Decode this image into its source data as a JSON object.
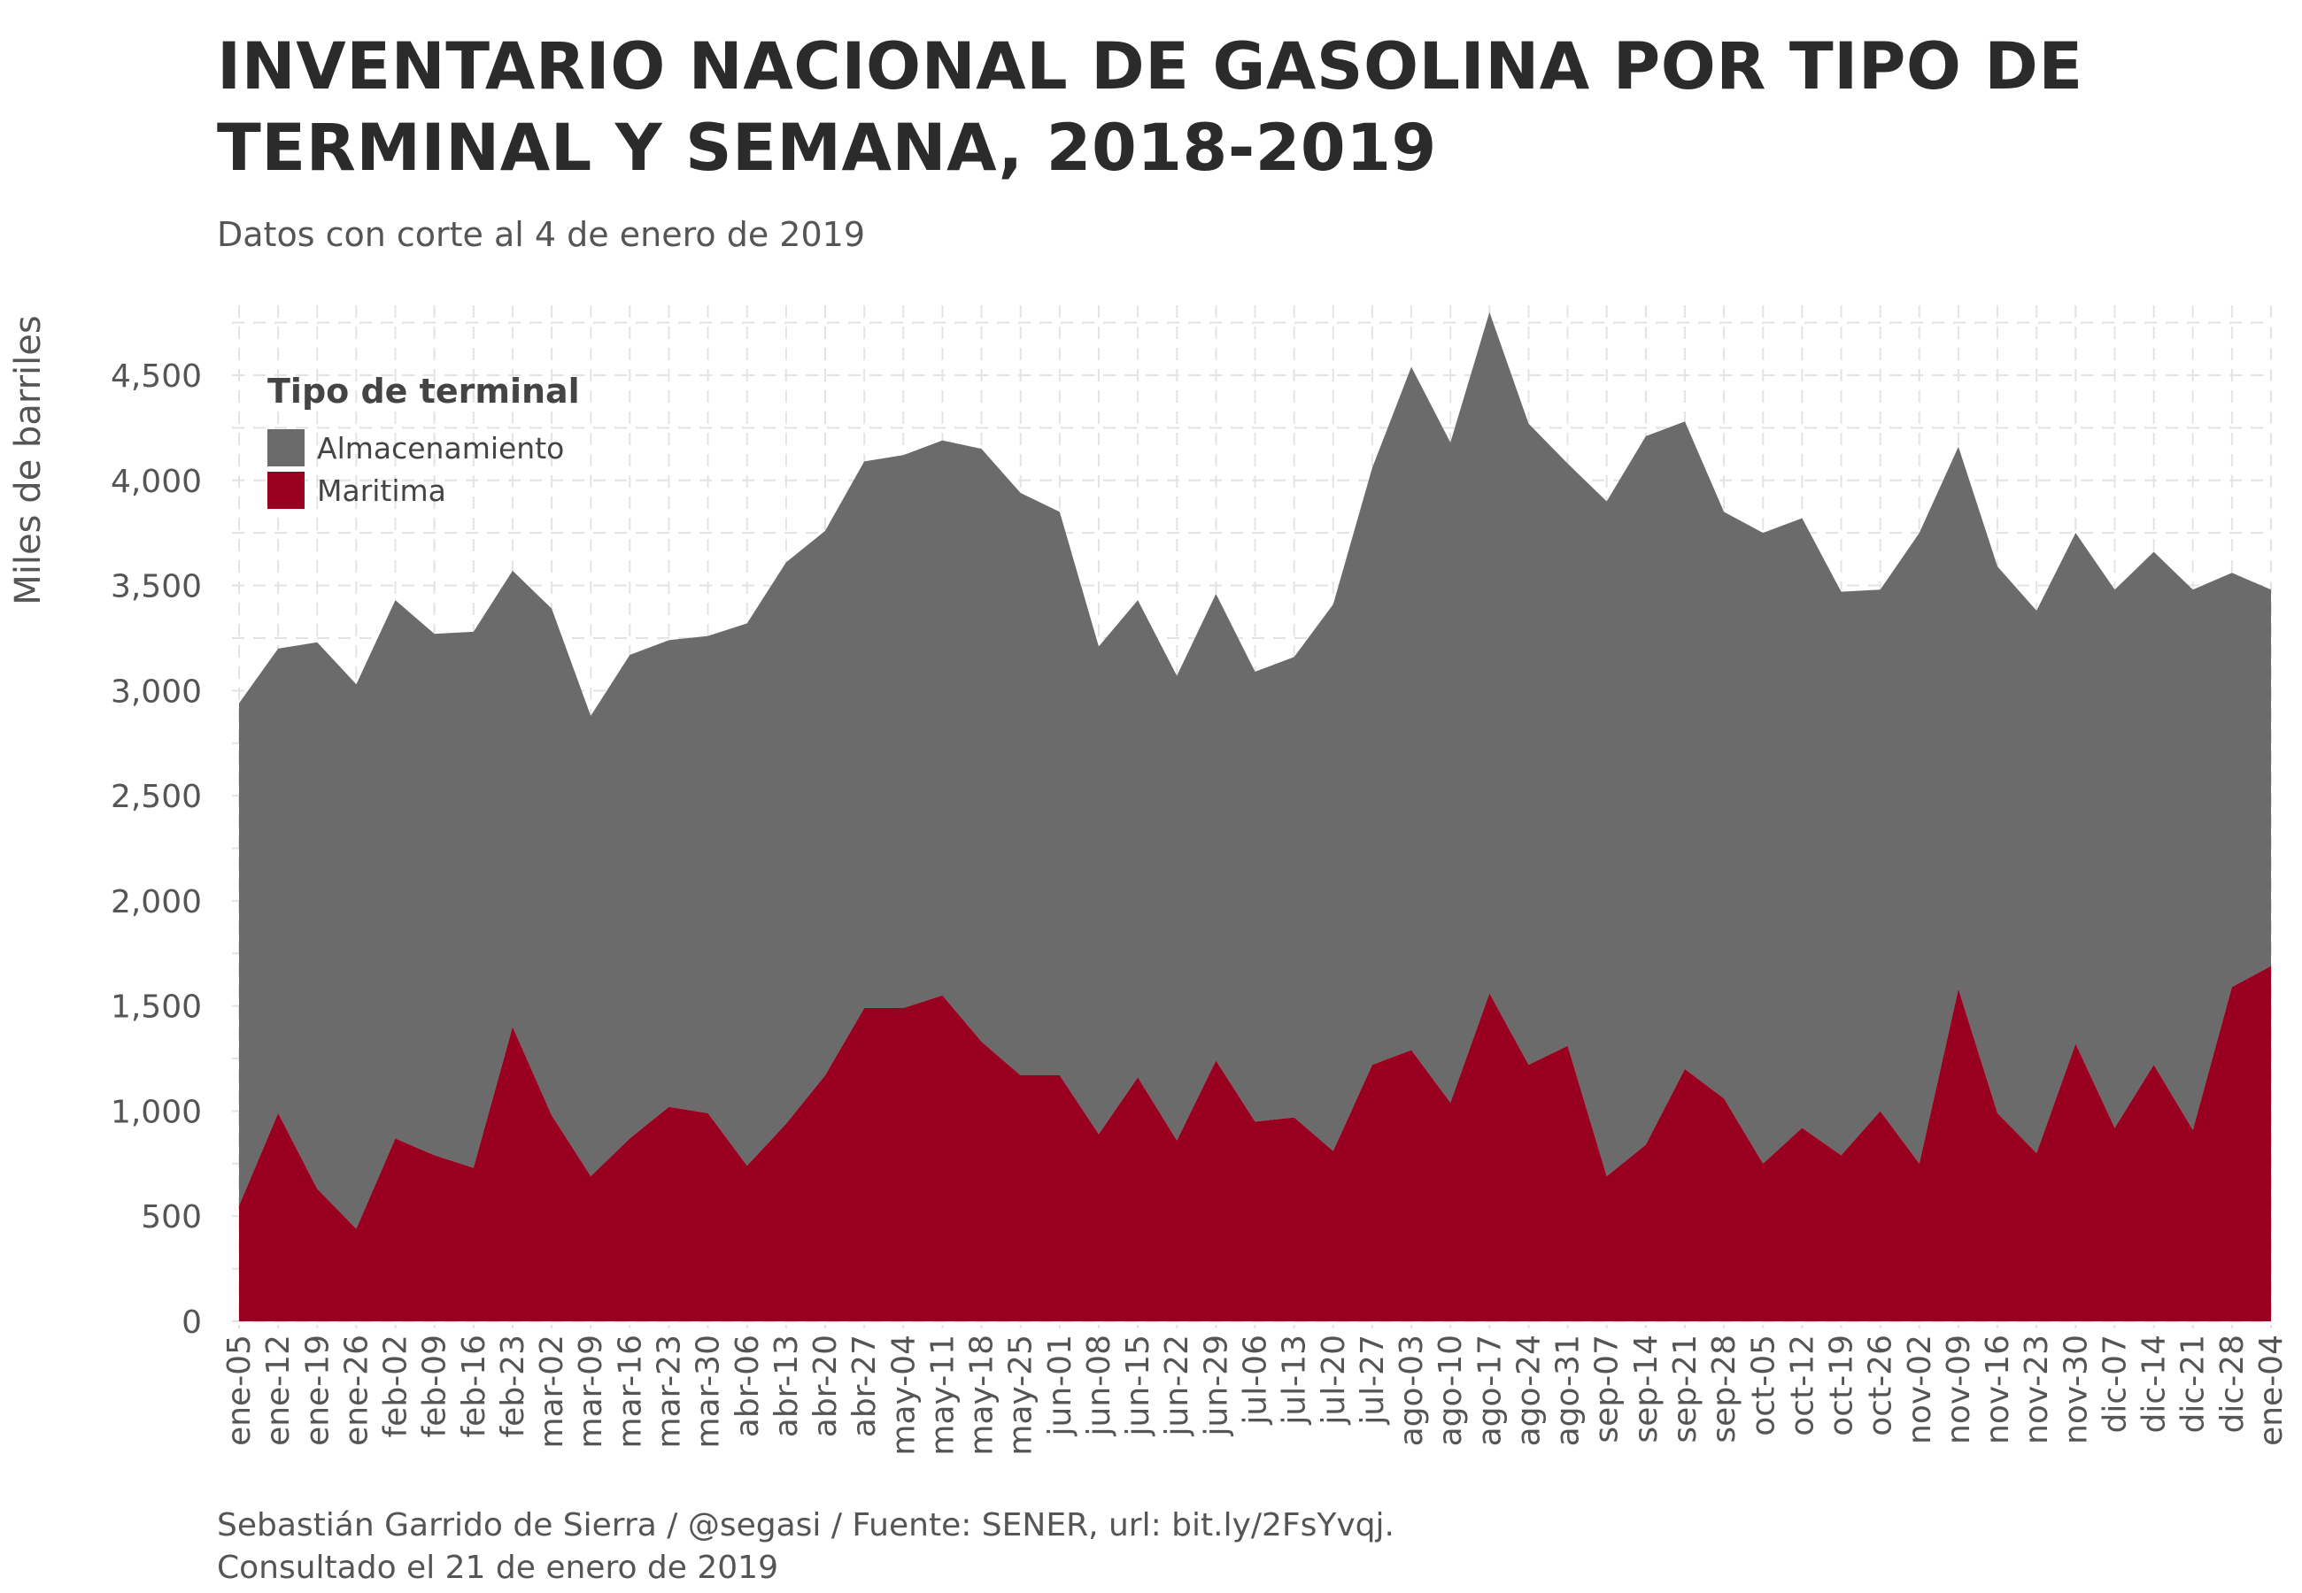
{
  "title": "INVENTARIO NACIONAL DE GASOLINA POR TIPO DE TERMINAL Y SEMANA, 2018-2019",
  "subtitle": "Datos con corte al 4 de enero de 2019",
  "caption_line1": "Sebastián Garrido de Sierra / @segasi / Fuente: SENER, url: bit.ly/2FsYvqj.",
  "caption_line2": "Consultado el 21 de enero de 2019",
  "colors": {
    "almacenamiento": "#6b6b6b",
    "maritima": "#990020"
  },
  "chart_data": {
    "type": "area",
    "stacked": true,
    "title": "INVENTARIO NACIONAL DE GASOLINA POR TIPO DE TERMINAL Y SEMANA, 2018-2019",
    "xlabel": "",
    "ylabel": "Miles de barriles",
    "ylim": [
      0,
      4800
    ],
    "yticks": [
      0,
      500,
      1000,
      1500,
      2000,
      2500,
      3000,
      3500,
      4000,
      4500
    ],
    "ytick_labels": [
      "0",
      "500",
      "1,000",
      "1,500",
      "2,000",
      "2,500",
      "3,000",
      "3,500",
      "4,000",
      "4,500"
    ],
    "legend_title": "Tipo de terminal",
    "legend_position": "top-left",
    "categories": [
      "ene-05",
      "ene-12",
      "ene-19",
      "ene-26",
      "feb-02",
      "feb-09",
      "feb-16",
      "feb-23",
      "mar-02",
      "mar-09",
      "mar-16",
      "mar-23",
      "mar-30",
      "abr-06",
      "abr-13",
      "abr-20",
      "abr-27",
      "may-04",
      "may-11",
      "may-18",
      "may-25",
      "jun-01",
      "jun-08",
      "jun-15",
      "jun-22",
      "jun-29",
      "jul-06",
      "jul-13",
      "jul-20",
      "jul-27",
      "ago-03",
      "ago-10",
      "ago-17",
      "ago-24",
      "ago-31",
      "sep-07",
      "sep-14",
      "sep-21",
      "sep-28",
      "oct-05",
      "oct-12",
      "oct-19",
      "oct-26",
      "nov-02",
      "nov-09",
      "nov-16",
      "nov-23",
      "nov-30",
      "dic-07",
      "dic-14",
      "dic-21",
      "dic-28",
      "ene-04"
    ],
    "series": [
      {
        "name": "Maritima",
        "values": [
          550,
          990,
          630,
          440,
          870,
          790,
          730,
          1400,
          980,
          690,
          870,
          1020,
          990,
          740,
          940,
          1170,
          1490,
          1490,
          1550,
          1330,
          1170,
          1170,
          890,
          1160,
          860,
          1240,
          950,
          970,
          810,
          1220,
          1290,
          1040,
          1560,
          1220,
          1310,
          690,
          840,
          1200,
          1060,
          750,
          920,
          790,
          1000,
          750,
          1580,
          990,
          800,
          1320,
          920,
          1220,
          910,
          1590,
          1690
        ]
      },
      {
        "name": "Almacenamiento",
        "values": [
          2390,
          2210,
          2600,
          2590,
          2560,
          2480,
          2550,
          2170,
          2410,
          2190,
          2300,
          2220,
          2270,
          2580,
          2670,
          2590,
          2600,
          2630,
          2640,
          2820,
          2770,
          2680,
          2320,
          2270,
          2210,
          2220,
          2140,
          2190,
          2600,
          2840,
          3250,
          3140,
          3240,
          3050,
          2770,
          3210,
          3370,
          3080,
          2790,
          3000,
          2900,
          2680,
          2480,
          3000,
          2580,
          2600,
          2580,
          2430,
          2560,
          2440,
          2570,
          1970,
          1790
        ]
      }
    ],
    "legend_order": [
      "Almacenamiento",
      "Maritima"
    ]
  }
}
